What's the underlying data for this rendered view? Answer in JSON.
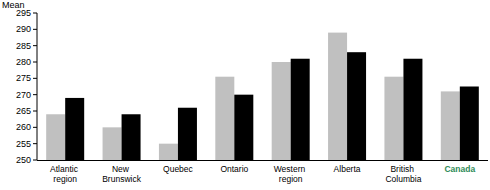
{
  "chart_data": {
    "type": "bar",
    "y_label": "Mean",
    "categories": [
      "Atlantic region",
      "New Brunswick",
      "Quebec",
      "Ontario",
      "Western region",
      "Alberta",
      "British Columbia",
      "Canada"
    ],
    "series": [
      {
        "color": "#c0c0c0",
        "values": [
          264,
          260,
          255,
          275.5,
          280,
          289,
          275.5,
          271
        ]
      },
      {
        "color": "#000000",
        "values": [
          269,
          264,
          266,
          270,
          281,
          283,
          281,
          272.5
        ]
      }
    ],
    "ylim": [
      250,
      295
    ],
    "yticks": [
      250,
      255,
      260,
      265,
      270,
      275,
      280,
      285,
      290,
      295
    ],
    "grid": false
  }
}
